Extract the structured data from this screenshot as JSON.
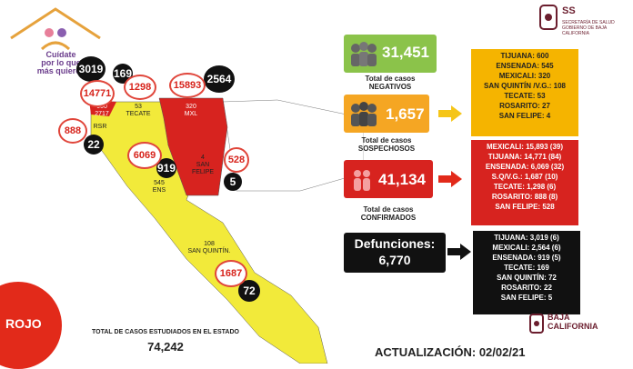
{
  "header": {
    "logo_line1": "Cuídate",
    "logo_line2": "por lo que",
    "logo_line3": "más quieres",
    "gov_title": "SS",
    "gov_subtitle": "SECRETARÍA DE SALUD GOBIERNO DE BAJA CALIFORNIA"
  },
  "map": {
    "black_circles": [
      "3019",
      "169",
      "2564",
      "22",
      "919",
      "5",
      "72"
    ],
    "red_circles": [
      "14771",
      "1298",
      "15893",
      "888",
      "6069",
      "528",
      "1687"
    ],
    "labels": {
      "tijuana": "600\n2717",
      "rosarito": "RSR",
      "tecate": "53\nTECATE",
      "mexicali": "320\nMXL",
      "san_felipe": "4\nSAN\nFELIPE",
      "ensenada": "545\nENS",
      "san_quintin": "108\nSAN QUINTÍN."
    },
    "colors": {
      "yellow": "#f2ea3a",
      "red": "#d7231f",
      "white_region": "#ffffff"
    }
  },
  "status": {
    "label": "ROJO",
    "color": "#e22a1a"
  },
  "totals": {
    "label": "TOTAL DE CASOS ESTUDIADOS EN EL ESTADO",
    "value": "74,242"
  },
  "stats": {
    "negativos": {
      "value": "31,451",
      "label": "Total de casos NEGATIVOS",
      "color": "#8bc34a"
    },
    "sospechosos": {
      "value": "1,657",
      "label": "Total de casos SOSPECHOSOS",
      "color": "#f5a623"
    },
    "confirmados": {
      "value": "41,134",
      "label": "Total de casos CONFIRMADOS",
      "color": "#d7231f"
    },
    "defunciones": {
      "title": "Defunciones:",
      "value": "6,770"
    }
  },
  "panels": {
    "sospechosos": [
      "TIJUANA: 600",
      "ENSENADA: 545",
      "MEXICALI: 320",
      "SAN QUINTÍN /V.G.: 108",
      "TECATE: 53",
      "ROSARITO: 27",
      "SAN FELIPE: 4"
    ],
    "confirmados": [
      "MEXICALI: 15,893 (39)",
      "TIJUANA: 14,771 (84)",
      "ENSENADA: 6,069 (32)",
      "S.Q/V.G.: 1,687 (10)",
      "TECATE: 1,298 (6)",
      "ROSARITO: 888 (8)",
      "SAN FELIPE: 528"
    ],
    "defunciones": [
      "TIJUANA: 3,019 (6)",
      "MEXICALI: 2,564 (6)",
      "ENSENADA: 919 (5)",
      "TECATE: 169",
      "SAN QUINTÍN: 72",
      "ROSARITO: 22",
      "SAN FELIPE: 5"
    ]
  },
  "footer": {
    "update": "ACTUALIZACIÓN: 02/02/21",
    "bc_line1": "BAJA",
    "bc_line2": "CALIFORNIA"
  }
}
